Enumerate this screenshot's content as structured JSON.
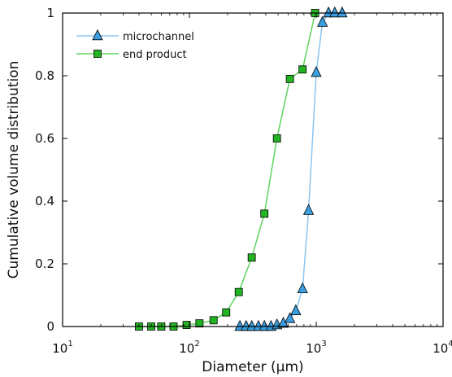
{
  "chart_data": {
    "type": "line",
    "title": "",
    "xlabel": "Diameter (µm)",
    "ylabel": "Cumulative volume distribution",
    "xscale": "log",
    "xlim": [
      10,
      10000
    ],
    "ylim": [
      0,
      1
    ],
    "x_ticks": [
      {
        "base": "10",
        "exp": "1",
        "value": 10
      },
      {
        "base": "10",
        "exp": "2",
        "value": 100
      },
      {
        "base": "10",
        "exp": "3",
        "value": 1000
      },
      {
        "base": "10",
        "exp": "4",
        "value": 10000
      }
    ],
    "y_ticks": [
      {
        "label": "0",
        "value": 0
      },
      {
        "label": "0.2",
        "value": 0.2
      },
      {
        "label": "0.4",
        "value": 0.4
      },
      {
        "label": "0.6",
        "value": 0.6
      },
      {
        "label": "0.8",
        "value": 0.8
      },
      {
        "label": "1",
        "value": 1
      }
    ],
    "grid": false,
    "legend_position": "top-left",
    "series": [
      {
        "name": "microchannel",
        "marker": "triangle",
        "line_color": "#8cc4ef",
        "marker_fill": "#3a9ee0",
        "x": [
          250,
          280,
          310,
          350,
          390,
          440,
          490,
          550,
          620,
          690,
          780,
          870,
          1000,
          1120,
          1250,
          1400,
          1600
        ],
        "y": [
          0.0,
          0.0,
          0.0,
          0.0,
          0.0,
          0.0,
          0.005,
          0.01,
          0.025,
          0.05,
          0.12,
          0.37,
          0.81,
          0.97,
          1.0,
          1.0,
          1.0
        ]
      },
      {
        "name": "end product",
        "marker": "square",
        "line_color": "#5ed45e",
        "marker_fill": "#23b423",
        "x": [
          40,
          50,
          60,
          75,
          95,
          120,
          155,
          195,
          245,
          310,
          390,
          490,
          620,
          780,
          980
        ],
        "y": [
          0.0,
          0.0,
          0.0,
          0.0,
          0.005,
          0.01,
          0.02,
          0.045,
          0.11,
          0.22,
          0.36,
          0.6,
          0.79,
          0.82,
          1.0
        ]
      }
    ]
  }
}
